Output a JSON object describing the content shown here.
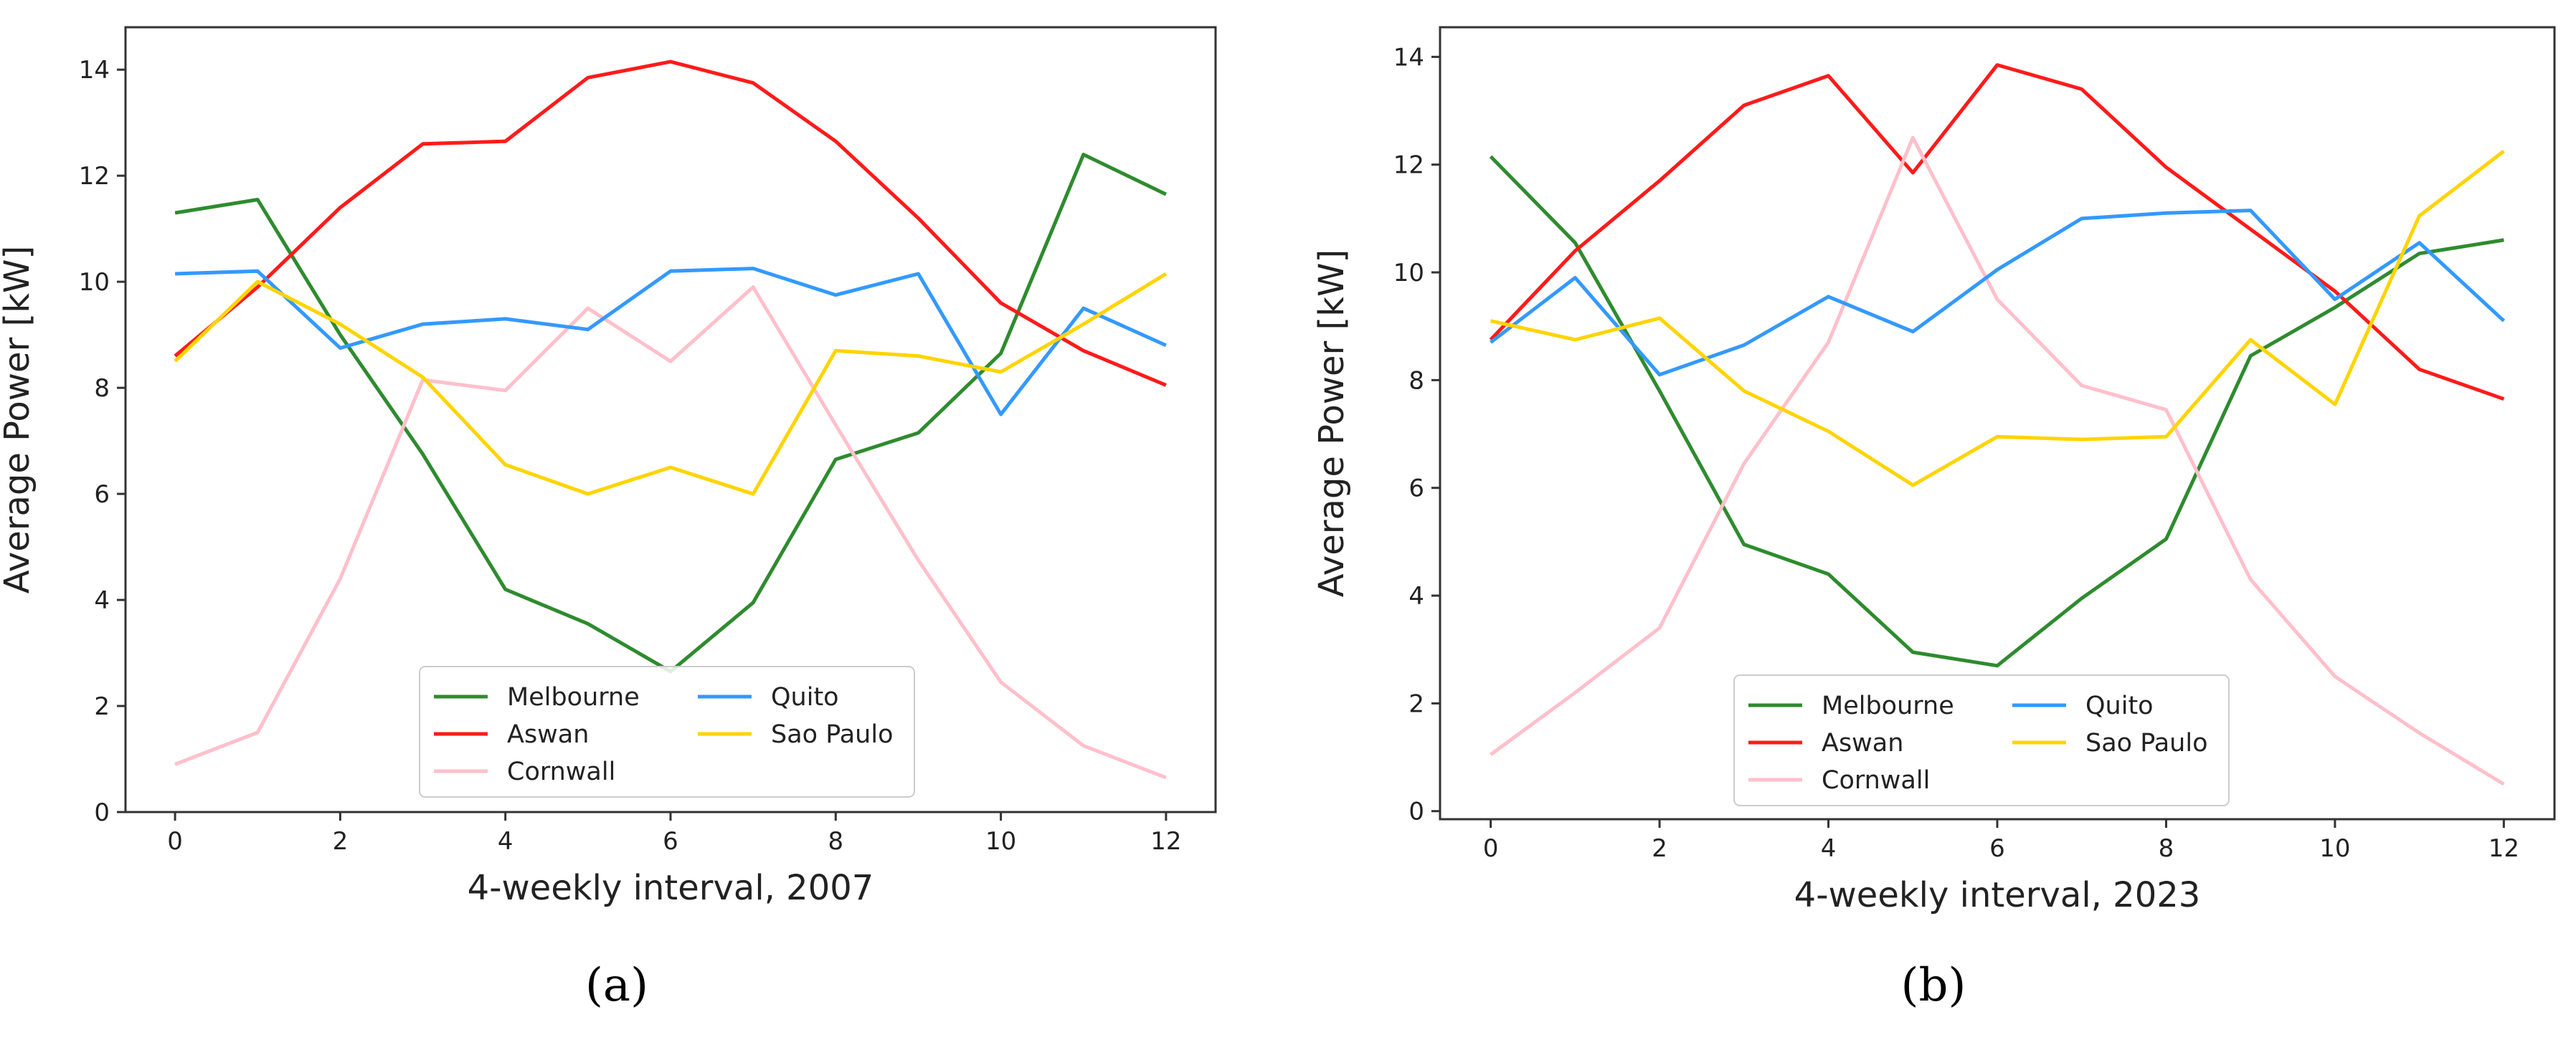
{
  "colors": {
    "Melbourne": "#2e8b2e",
    "Aswan": "#ff1a1a",
    "Cornwall": "#ffc0cb",
    "Quito": "#3399ff",
    "Sao Paulo": "#ffd400"
  },
  "chart_data": [
    {
      "type": "line",
      "panel_label": "(a)",
      "panel_letter": "a",
      "title": "",
      "xlabel": "4-weekly interval, 2007",
      "ylabel": "Average Power [kW]",
      "xlim": [
        -0.6,
        12.6
      ],
      "ylim": [
        0,
        14.8
      ],
      "xticks": [
        0,
        2,
        4,
        6,
        8,
        10,
        12
      ],
      "yticks": [
        0,
        2,
        4,
        6,
        8,
        10,
        12,
        14
      ],
      "legend_position": "bottom-center",
      "x": [
        0,
        1,
        2,
        3,
        4,
        5,
        6,
        7,
        8,
        9,
        10,
        11,
        12
      ],
      "series": [
        {
          "name": "Melbourne",
          "values": [
            11.3,
            11.55,
            9.0,
            6.75,
            4.2,
            3.55,
            2.65,
            3.95,
            6.65,
            7.15,
            8.65,
            12.4,
            11.65
          ]
        },
        {
          "name": "Aswan",
          "values": [
            8.6,
            9.9,
            11.4,
            12.6,
            12.65,
            13.85,
            14.15,
            13.75,
            12.65,
            11.2,
            9.6,
            8.7,
            8.05
          ]
        },
        {
          "name": "Cornwall",
          "values": [
            0.9,
            1.5,
            4.4,
            8.15,
            7.95,
            9.5,
            8.5,
            9.9,
            7.3,
            4.75,
            2.45,
            1.25,
            0.65
          ]
        },
        {
          "name": "Quito",
          "values": [
            10.15,
            10.2,
            8.75,
            9.2,
            9.3,
            9.1,
            10.2,
            10.25,
            9.75,
            10.15,
            7.5,
            9.5,
            8.8
          ]
        },
        {
          "name": "Sao Paulo",
          "values": [
            8.5,
            10.0,
            9.2,
            8.2,
            6.55,
            6.0,
            6.5,
            6.0,
            8.7,
            8.6,
            8.3,
            9.2,
            10.15
          ]
        }
      ]
    },
    {
      "type": "line",
      "panel_label": "(b)",
      "panel_letter": "b",
      "title": "",
      "xlabel": "4-weekly interval, 2023",
      "ylabel": "Average Power [kW]",
      "xlim": [
        -0.6,
        12.6
      ],
      "ylim": [
        -0.15,
        14.55
      ],
      "xticks": [
        0,
        2,
        4,
        6,
        8,
        10,
        12
      ],
      "yticks": [
        0,
        2,
        4,
        6,
        8,
        10,
        12,
        14
      ],
      "legend_position": "bottom-center",
      "x": [
        0,
        1,
        2,
        3,
        4,
        5,
        6,
        7,
        8,
        9,
        10,
        11,
        12
      ],
      "series": [
        {
          "name": "Melbourne",
          "values": [
            12.15,
            10.55,
            7.8,
            4.95,
            4.4,
            2.95,
            2.7,
            3.95,
            5.05,
            8.45,
            9.35,
            10.35,
            10.6
          ]
        },
        {
          "name": "Aswan",
          "values": [
            8.75,
            10.4,
            11.7,
            13.1,
            13.65,
            11.85,
            13.85,
            13.4,
            11.95,
            10.8,
            9.65,
            8.2,
            7.65
          ]
        },
        {
          "name": "Cornwall",
          "values": [
            1.05,
            2.2,
            3.4,
            6.45,
            8.7,
            12.5,
            9.5,
            7.9,
            7.45,
            4.3,
            2.5,
            1.45,
            0.5
          ]
        },
        {
          "name": "Quito",
          "values": [
            8.7,
            9.9,
            8.1,
            8.65,
            9.55,
            8.9,
            10.05,
            11.0,
            11.1,
            11.15,
            9.5,
            10.55,
            9.1
          ]
        },
        {
          "name": "Sao Paulo",
          "values": [
            9.1,
            8.75,
            9.15,
            7.8,
            7.05,
            6.05,
            6.95,
            6.9,
            6.95,
            8.75,
            7.55,
            11.05,
            12.25
          ]
        }
      ]
    }
  ]
}
